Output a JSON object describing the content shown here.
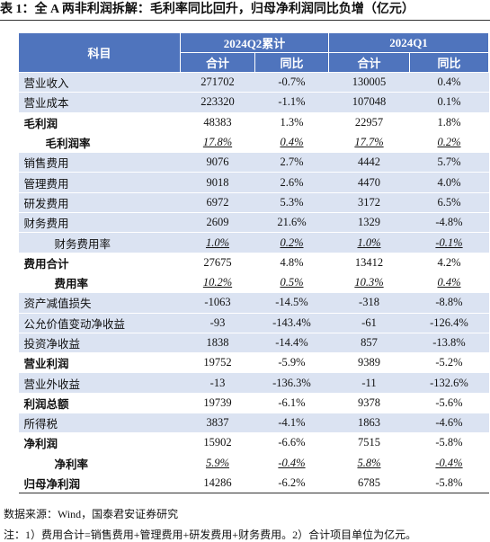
{
  "title": "表 1：全 A 两非利润拆解：毛利率同比回升，归母净利润同比负增（亿元）",
  "table": {
    "header": {
      "subject": "科目",
      "periods": [
        "2024Q2累计",
        "2024Q1"
      ],
      "columns": [
        "合计",
        "同比",
        "合计",
        "同比"
      ]
    },
    "rows": [
      [
        "营业收入",
        "271702",
        "-0.7%",
        "130005",
        "0.4%"
      ],
      [
        "营业成本",
        "223320",
        "-1.1%",
        "107048",
        "0.1%"
      ],
      [
        "毛利润",
        "48383",
        "1.3%",
        "22957",
        "1.8%"
      ],
      [
        "毛利润率",
        "17.8%",
        "0.4%",
        "17.7%",
        "0.2%"
      ],
      [
        "销售费用",
        "9076",
        "2.7%",
        "4442",
        "5.7%"
      ],
      [
        "管理费用",
        "9018",
        "2.6%",
        "4470",
        "4.0%"
      ],
      [
        "研发费用",
        "6972",
        "5.3%",
        "3172",
        "6.5%"
      ],
      [
        "财务费用",
        "2609",
        "21.6%",
        "1329",
        "-4.8%"
      ],
      [
        "财务费用率",
        "1.0%",
        "0.2%",
        "1.0%",
        "-0.1%"
      ],
      [
        "费用合计",
        "27675",
        "4.8%",
        "13412",
        "4.2%"
      ],
      [
        "费用率",
        "10.2%",
        "0.5%",
        "10.3%",
        "0.4%"
      ],
      [
        "资产减值损失",
        "-1063",
        "-14.5%",
        "-318",
        "-8.8%"
      ],
      [
        "公允价值变动净收益",
        "-93",
        "-143.4%",
        "-61",
        "-126.4%"
      ],
      [
        "投资净收益",
        "1838",
        "-14.4%",
        "857",
        "-13.8%"
      ],
      [
        "营业利润",
        "19752",
        "-5.9%",
        "9389",
        "-5.2%"
      ],
      [
        "营业外收益",
        "-13",
        "-136.3%",
        "-11",
        "-132.6%"
      ],
      [
        "利润总额",
        "19739",
        "-6.1%",
        "9378",
        "-5.6%"
      ],
      [
        "所得税",
        "3837",
        "-4.1%",
        "1863",
        "-4.6%"
      ],
      [
        "净利润",
        "15902",
        "-6.6%",
        "7515",
        "-5.8%"
      ],
      [
        "净利率",
        "5.9%",
        "-0.4%",
        "5.8%",
        "-0.4%"
      ],
      [
        "归母净利润",
        "14286",
        "-6.2%",
        "6785",
        "-5.8%"
      ]
    ]
  },
  "footer": {
    "source": "数据来源：Wind，国泰君安证券研究",
    "note": "注：1）费用合计=销售费用+管理费用+研发费用+财务费用。2）合计项目单位为亿元。"
  }
}
